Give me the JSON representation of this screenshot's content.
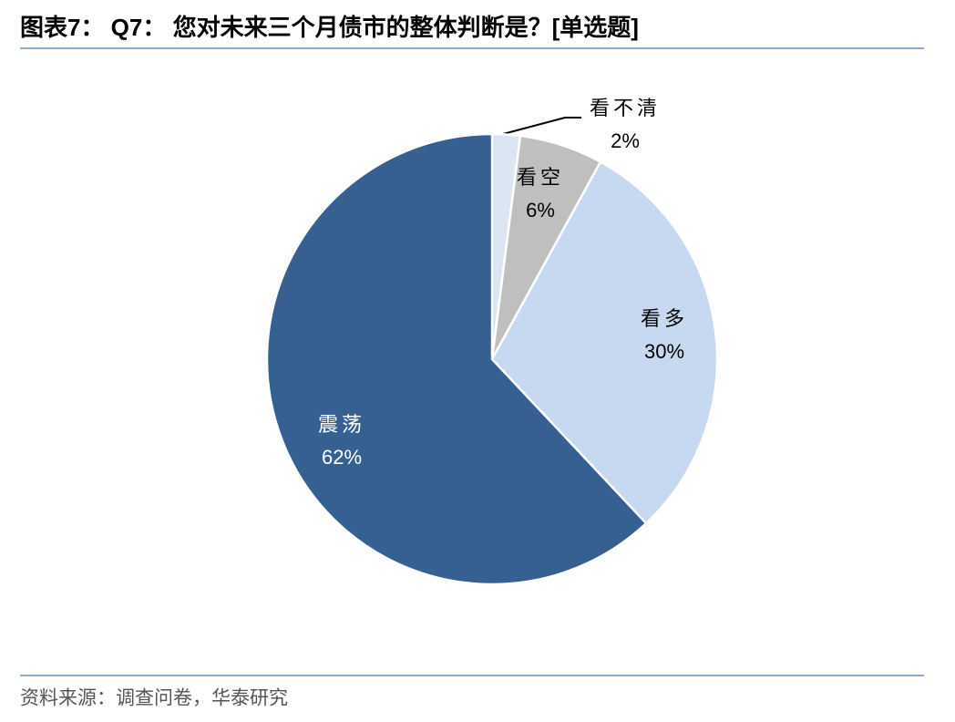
{
  "chart_data": {
    "type": "pie",
    "title": "图表7： Q7： 您对未来三个月债市的整体判断是？[单选题]",
    "categories": [
      "看不清",
      "看空",
      "看多",
      "震荡"
    ],
    "values": [
      2,
      6,
      30,
      62
    ],
    "value_labels": [
      "2%",
      "6%",
      "30%",
      "62%"
    ],
    "colors": [
      "#dce6f2",
      "#bfbfbf",
      "#c6d9f1",
      "#376092"
    ],
    "source": "资料来源：调查问卷，华泰研究"
  }
}
